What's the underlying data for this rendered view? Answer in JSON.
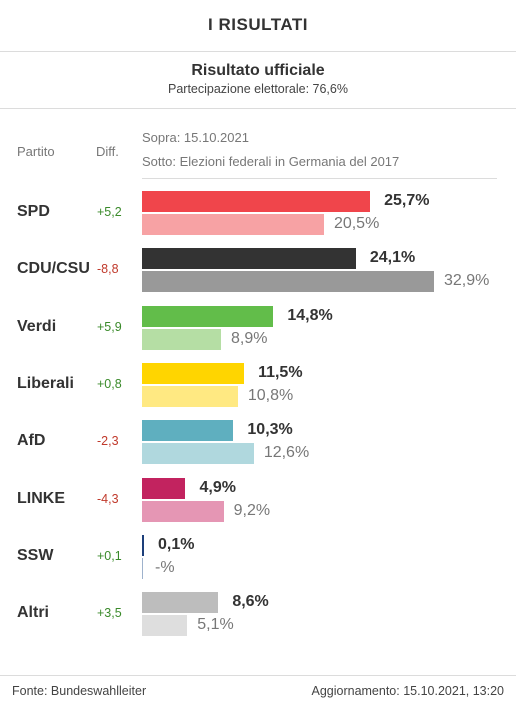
{
  "header": {
    "title": "I  RISULTATI"
  },
  "official": {
    "title": "Risultato ufficiale",
    "subtitle": "Partecipazione elettorale: 76,6%"
  },
  "columns": {
    "party": "Partito",
    "diff": "Diff."
  },
  "legend": {
    "current": "Sopra: 15.10.2021",
    "previous": "Sotto: Elezioni federali in Germania del 2017"
  },
  "chart_data": {
    "type": "bar",
    "orientation": "horizontal",
    "categories": [
      "SPD",
      "CDU/CSU",
      "Verdi",
      "Liberali",
      "AfD",
      "LINKE",
      "SSW",
      "Altri"
    ],
    "series": [
      {
        "name": "Sopra: 15.10.2021",
        "values": [
          25.7,
          24.1,
          14.8,
          11.5,
          10.3,
          4.9,
          0.1,
          8.6
        ]
      },
      {
        "name": "Sotto: Elezioni federali in Germania del 2017",
        "values": [
          20.5,
          32.9,
          8.9,
          10.8,
          12.6,
          9.2,
          null,
          5.1
        ]
      }
    ],
    "diff": [
      5.2,
      -8.8,
      5.9,
      0.8,
      -2.3,
      -4.3,
      0.1,
      3.5
    ],
    "xlim": [
      0,
      40
    ],
    "grid": false
  },
  "rows": [
    {
      "party": "SPD",
      "diff": "+5,2",
      "cur": "25,7%",
      "prev": "20,5%",
      "color": "#f0454b",
      "color_prev": "#f7a2a4"
    },
    {
      "party": "CDU/CSU",
      "diff": "-8,8",
      "cur": "24,1%",
      "prev": "32,9%",
      "color": "#333333",
      "color_prev": "#999999"
    },
    {
      "party": "Verdi",
      "diff": "+5,9",
      "cur": "14,8%",
      "prev": "8,9%",
      "color": "#62bd4a",
      "color_prev": "#b5dea4"
    },
    {
      "party": "Liberali",
      "diff": "+0,8",
      "cur": "11,5%",
      "prev": "10,8%",
      "color": "#ffd500",
      "color_prev": "#ffe982"
    },
    {
      "party": "AfD",
      "diff": "-2,3",
      "cur": "10,3%",
      "prev": "12,6%",
      "color": "#5fafbf",
      "color_prev": "#b0d8de"
    },
    {
      "party": "LINKE",
      "diff": "-4,3",
      "cur": "4,9%",
      "prev": "9,2%",
      "color": "#c2235f",
      "color_prev": "#e596b4"
    },
    {
      "party": "SSW",
      "diff": "+0,1",
      "cur": "0,1%",
      "prev": "-%",
      "color": "#1d3f7a",
      "color_prev": "#9eb2cc"
    },
    {
      "party": "Altri",
      "diff": "+3,5",
      "cur": "8,6%",
      "prev": "5,1%",
      "color": "#bdbdbd",
      "color_prev": "#dedede"
    }
  ],
  "footer": {
    "source": "Fonte: Bundeswahlleiter",
    "updated": "Aggiornamento: 15.10.2021, 13:20"
  }
}
